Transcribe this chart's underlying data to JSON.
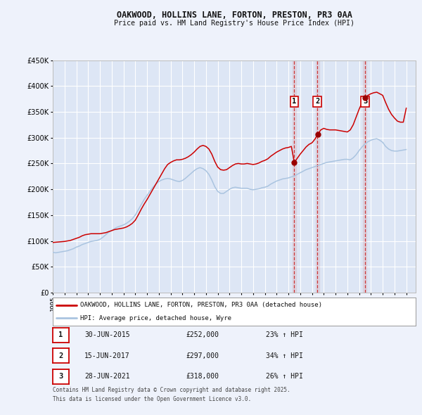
{
  "title": "OAKWOOD, HOLLINS LANE, FORTON, PRESTON, PR3 0AA",
  "subtitle": "Price paid vs. HM Land Registry's House Price Index (HPI)",
  "background_color": "#eef2fb",
  "plot_bg_color": "#dde6f5",
  "grid_color": "#ffffff",
  "ylim": [
    0,
    450000
  ],
  "yticks": [
    0,
    50000,
    100000,
    150000,
    200000,
    250000,
    300000,
    350000,
    400000,
    450000
  ],
  "xlim_start": 1995.0,
  "xlim_end": 2025.8,
  "line1_color": "#cc0000",
  "line2_color": "#aac4e0",
  "sale_marker_color": "#990000",
  "vline_color": "#cc2222",
  "transaction_label_border": "#cc0000",
  "legend_label1": "OAKWOOD, HOLLINS LANE, FORTON, PRESTON, PR3 0AA (detached house)",
  "legend_label2": "HPI: Average price, detached house, Wyre",
  "transactions": [
    {
      "num": 1,
      "date": "30-JUN-2015",
      "price": "£252,000",
      "pct": "23% ↑ HPI",
      "year": 2015.5
    },
    {
      "num": 2,
      "date": "15-JUN-2017",
      "price": "£297,000",
      "pct": "34% ↑ HPI",
      "year": 2017.45
    },
    {
      "num": 3,
      "date": "28-JUN-2021",
      "price": "£318,000",
      "pct": "26% ↑ HPI",
      "year": 2021.5
    }
  ],
  "footer1": "Contains HM Land Registry data © Crown copyright and database right 2025.",
  "footer2": "This data is licensed under the Open Government Licence v3.0.",
  "hpi_data_x": [
    1995.0,
    1995.25,
    1995.5,
    1995.75,
    1996.0,
    1996.25,
    1996.5,
    1996.75,
    1997.0,
    1997.25,
    1997.5,
    1997.75,
    1998.0,
    1998.25,
    1998.5,
    1998.75,
    1999.0,
    1999.25,
    1999.5,
    1999.75,
    2000.0,
    2000.25,
    2000.5,
    2000.75,
    2001.0,
    2001.25,
    2001.5,
    2001.75,
    2002.0,
    2002.25,
    2002.5,
    2002.75,
    2003.0,
    2003.25,
    2003.5,
    2003.75,
    2004.0,
    2004.25,
    2004.5,
    2004.75,
    2005.0,
    2005.25,
    2005.5,
    2005.75,
    2006.0,
    2006.25,
    2006.5,
    2006.75,
    2007.0,
    2007.25,
    2007.5,
    2007.75,
    2008.0,
    2008.25,
    2008.5,
    2008.75,
    2009.0,
    2009.25,
    2009.5,
    2009.75,
    2010.0,
    2010.25,
    2010.5,
    2010.75,
    2011.0,
    2011.25,
    2011.5,
    2011.75,
    2012.0,
    2012.25,
    2012.5,
    2012.75,
    2013.0,
    2013.25,
    2013.5,
    2013.75,
    2014.0,
    2014.25,
    2014.5,
    2014.75,
    2015.0,
    2015.25,
    2015.5,
    2015.75,
    2016.0,
    2016.25,
    2016.5,
    2016.75,
    2017.0,
    2017.25,
    2017.5,
    2017.75,
    2018.0,
    2018.25,
    2018.5,
    2018.75,
    2019.0,
    2019.25,
    2019.5,
    2019.75,
    2020.0,
    2020.25,
    2020.5,
    2020.75,
    2021.0,
    2021.25,
    2021.5,
    2021.75,
    2022.0,
    2022.25,
    2022.5,
    2022.75,
    2023.0,
    2023.25,
    2023.5,
    2023.75,
    2024.0,
    2024.25,
    2024.5,
    2024.75,
    2025.0
  ],
  "hpi_data_y": [
    78000,
    77000,
    78000,
    79000,
    80000,
    81000,
    83000,
    85000,
    88000,
    90000,
    93000,
    95000,
    97000,
    99000,
    100000,
    101000,
    103000,
    107000,
    112000,
    117000,
    120000,
    124000,
    127000,
    129000,
    131000,
    134000,
    138000,
    143000,
    150000,
    160000,
    170000,
    180000,
    188000,
    196000,
    204000,
    210000,
    215000,
    218000,
    220000,
    221000,
    220000,
    218000,
    216000,
    215000,
    217000,
    221000,
    226000,
    231000,
    236000,
    240000,
    242000,
    240000,
    236000,
    229000,
    218000,
    205000,
    196000,
    192000,
    192000,
    196000,
    200000,
    203000,
    204000,
    203000,
    202000,
    202000,
    202000,
    200000,
    199000,
    200000,
    201000,
    203000,
    204000,
    206000,
    210000,
    213000,
    216000,
    218000,
    220000,
    221000,
    222000,
    224000,
    226000,
    229000,
    232000,
    235000,
    238000,
    240000,
    242000,
    244000,
    246000,
    248000,
    250000,
    252000,
    253000,
    254000,
    255000,
    256000,
    257000,
    258000,
    258000,
    257000,
    261000,
    267000,
    275000,
    282000,
    288000,
    292000,
    295000,
    297000,
    298000,
    295000,
    291000,
    283000,
    278000,
    275000,
    274000,
    274000,
    275000,
    276000,
    277000
  ],
  "price_data_x": [
    1995.0,
    1995.25,
    1995.5,
    1995.75,
    1996.0,
    1996.25,
    1996.5,
    1996.75,
    1997.0,
    1997.25,
    1997.5,
    1997.75,
    1998.0,
    1998.25,
    1998.5,
    1998.75,
    1999.0,
    1999.25,
    1999.5,
    1999.75,
    2000.0,
    2000.25,
    2000.5,
    2000.75,
    2001.0,
    2001.25,
    2001.5,
    2001.75,
    2002.0,
    2002.25,
    2002.5,
    2002.75,
    2003.0,
    2003.25,
    2003.5,
    2003.75,
    2004.0,
    2004.25,
    2004.5,
    2004.75,
    2005.0,
    2005.25,
    2005.5,
    2005.75,
    2006.0,
    2006.25,
    2006.5,
    2006.75,
    2007.0,
    2007.25,
    2007.5,
    2007.75,
    2008.0,
    2008.25,
    2008.5,
    2008.75,
    2009.0,
    2009.25,
    2009.5,
    2009.75,
    2010.0,
    2010.25,
    2010.5,
    2010.75,
    2011.0,
    2011.25,
    2011.5,
    2011.75,
    2012.0,
    2012.25,
    2012.5,
    2012.75,
    2013.0,
    2013.25,
    2013.5,
    2013.75,
    2014.0,
    2014.25,
    2014.5,
    2014.75,
    2015.0,
    2015.25,
    2015.5,
    2015.75,
    2016.0,
    2016.25,
    2016.5,
    2016.75,
    2017.0,
    2017.25,
    2017.5,
    2017.75,
    2018.0,
    2018.25,
    2018.5,
    2018.75,
    2019.0,
    2019.25,
    2019.5,
    2019.75,
    2020.0,
    2020.25,
    2020.5,
    2020.75,
    2021.0,
    2021.25,
    2021.5,
    2021.75,
    2022.0,
    2022.25,
    2022.5,
    2022.75,
    2023.0,
    2023.25,
    2023.5,
    2023.75,
    2024.0,
    2024.25,
    2024.5,
    2024.75,
    2025.0
  ],
  "price_data_y": [
    97000,
    97500,
    98000,
    98500,
    99000,
    100000,
    101000,
    103000,
    105000,
    107000,
    110000,
    112000,
    113000,
    114000,
    114000,
    114000,
    114000,
    115000,
    116000,
    118000,
    120000,
    122000,
    123000,
    124000,
    125000,
    127000,
    130000,
    134000,
    140000,
    150000,
    161000,
    171000,
    180000,
    190000,
    200000,
    210000,
    220000,
    230000,
    240000,
    248000,
    252000,
    255000,
    257000,
    257000,
    258000,
    260000,
    263000,
    267000,
    272000,
    278000,
    283000,
    285000,
    283000,
    278000,
    268000,
    254000,
    243000,
    238000,
    237000,
    238000,
    242000,
    246000,
    249000,
    250000,
    249000,
    249000,
    250000,
    249000,
    248000,
    249000,
    251000,
    254000,
    256000,
    259000,
    264000,
    268000,
    272000,
    275000,
    278000,
    280000,
    281000,
    283000,
    252000,
    260000,
    268000,
    275000,
    282000,
    287000,
    290000,
    297000,
    307000,
    315000,
    318000,
    316000,
    315000,
    315000,
    315000,
    314000,
    313000,
    312000,
    311000,
    315000,
    325000,
    340000,
    355000,
    368000,
    377000,
    382000,
    385000,
    387000,
    388000,
    385000,
    382000,
    368000,
    355000,
    345000,
    338000,
    332000,
    330000,
    330000,
    357000
  ]
}
